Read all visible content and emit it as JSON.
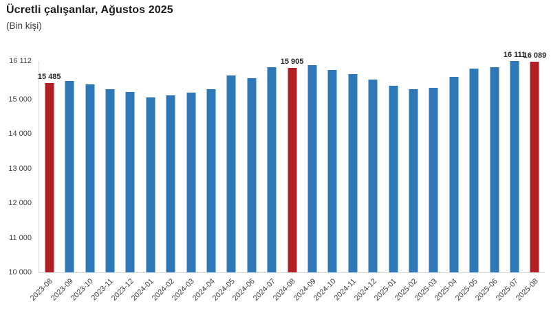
{
  "header": {
    "title": "Ücretli çalışanlar, Ağustos 2025",
    "subtitle": "(Bin kişi)"
  },
  "chart_data": {
    "type": "bar",
    "title": "Ücretli çalışanlar, Ağustos 2025",
    "ylabel": "(Bin kişi)",
    "categories": [
      "2023-08",
      "2023-09",
      "2023-10",
      "2023-11",
      "2023-12",
      "2024-01",
      "2024-02",
      "2024-03",
      "2024-04",
      "2024-05",
      "2024-06",
      "2024-07",
      "2024-08",
      "2024-09",
      "2024-10",
      "2024-11",
      "2024-12",
      "2025-01",
      "2025-02",
      "2025-03",
      "2025-04",
      "2025-05",
      "2025-06",
      "2025-07",
      "2025-08"
    ],
    "values": [
      15485,
      15540,
      15440,
      15305,
      15220,
      15060,
      15125,
      15205,
      15290,
      15695,
      15625,
      15925,
      15905,
      15985,
      15860,
      15740,
      15570,
      15405,
      15295,
      15340,
      15650,
      15890,
      15940,
      16111,
      16089
    ],
    "highlighted_indices": [
      0,
      12,
      24
    ],
    "data_labels": [
      {
        "index": 0,
        "text": "15 485"
      },
      {
        "index": 12,
        "text": "15 905"
      },
      {
        "index": 23,
        "text": "16 111"
      },
      {
        "index": 24,
        "text": "16 089"
      }
    ],
    "ylim": [
      10000,
      16112
    ],
    "y_ticks": [
      {
        "value": 16112,
        "label": "16 112"
      },
      {
        "value": 15000,
        "label": "15 000"
      },
      {
        "value": 14000,
        "label": "14 000"
      },
      {
        "value": 13000,
        "label": "13 000"
      },
      {
        "value": 12000,
        "label": "12 000"
      },
      {
        "value": 11000,
        "label": "11 000"
      },
      {
        "value": 10000,
        "label": "10 000"
      }
    ],
    "grid": false,
    "legend_position": "none",
    "colors": {
      "bar_default": "#2e78b8",
      "bar_highlight": "#b02025",
      "axis_line": "#d9d9d9",
      "tick_text": "#3f3f3f",
      "label_text": "#262626"
    }
  }
}
